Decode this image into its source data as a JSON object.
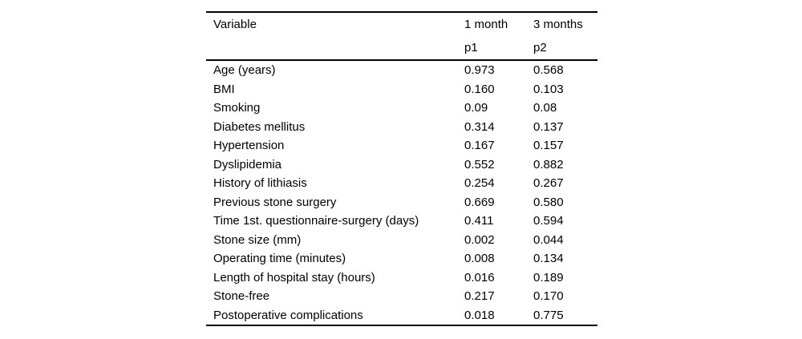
{
  "page": {
    "background_color": "#ffffff",
    "text_color": "#000000",
    "rule_color": "#000000"
  },
  "table": {
    "header": {
      "col_variable": {
        "line1": "Variable",
        "line2": ""
      },
      "col_1month": {
        "line1": "1 month",
        "line2": "p1"
      },
      "col_3months": {
        "line1": "3 months",
        "line2": "p2"
      }
    },
    "rows": [
      {
        "variable": "Age (years)",
        "p1": "0.973",
        "p2": "0.568"
      },
      {
        "variable": "BMI",
        "p1": "0.160",
        "p2": "0.103"
      },
      {
        "variable": "Smoking",
        "p1": "0.09",
        "p2": "0.08"
      },
      {
        "variable": "Diabetes mellitus",
        "p1": "0.314",
        "p2": "0.137"
      },
      {
        "variable": "Hypertension",
        "p1": "0.167",
        "p2": "0.157"
      },
      {
        "variable": "Dyslipidemia",
        "p1": "0.552",
        "p2": "0.882"
      },
      {
        "variable": "History of lithiasis",
        "p1": "0.254",
        "p2": "0.267"
      },
      {
        "variable": "Previous stone surgery",
        "p1": "0.669",
        "p2": "0.580"
      },
      {
        "variable": "Time 1st. questionnaire-surgery (days)",
        "p1": "0.411",
        "p2": "0.594"
      },
      {
        "variable": "Stone size (mm)",
        "p1": "0.002",
        "p2": "0.044"
      },
      {
        "variable": "Operating time (minutes)",
        "p1": "0.008",
        "p2": "0.134"
      },
      {
        "variable": "Length of hospital stay (hours)",
        "p1": "0.016",
        "p2": "0.189"
      },
      {
        "variable": "Stone-free",
        "p1": "0.217",
        "p2": "0.170"
      },
      {
        "variable": "Postoperative complications",
        "p1": "0.018",
        "p2": "0.775"
      }
    ]
  }
}
